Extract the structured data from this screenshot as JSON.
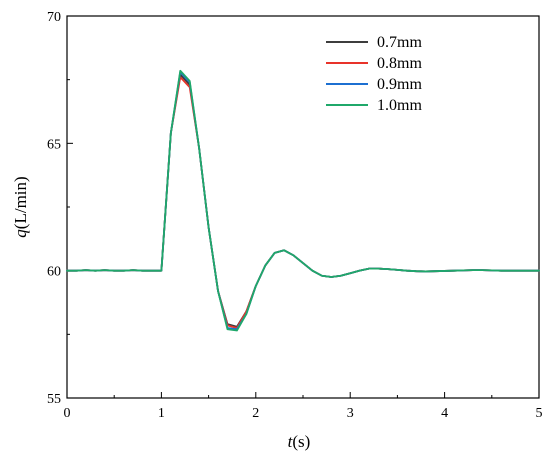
{
  "chart_data": {
    "type": "line",
    "xlabel_var": "t",
    "xlabel_unit": "(s)",
    "ylabel_var": "q",
    "ylabel_unit": "(L/min)",
    "xlim": [
      0,
      5
    ],
    "ylim": [
      55,
      70
    ],
    "xticks": [
      0,
      1,
      2,
      3,
      4,
      5
    ],
    "yticks": [
      55,
      60,
      65,
      70
    ],
    "grid": false,
    "legend_position": "top-right",
    "x": [
      0,
      0.1,
      0.2,
      0.3,
      0.4,
      0.5,
      0.6,
      0.7,
      0.8,
      0.9,
      1.0,
      1.1,
      1.2,
      1.3,
      1.4,
      1.5,
      1.6,
      1.7,
      1.8,
      1.9,
      2.0,
      2.1,
      2.2,
      2.3,
      2.4,
      2.5,
      2.6,
      2.7,
      2.8,
      2.9,
      3.0,
      3.1,
      3.2,
      3.3,
      3.4,
      3.5,
      3.6,
      3.7,
      3.8,
      3.9,
      4.0,
      4.1,
      4.2,
      4.3,
      4.4,
      4.5,
      4.6,
      4.7,
      4.8,
      4.9,
      5.0
    ],
    "series": [
      {
        "name": "0.7mm",
        "color": "#3d3d3d",
        "values": [
          60.0,
          60.0,
          60.02,
          60.0,
          60.02,
          60.0,
          60.0,
          60.02,
          60.0,
          60.0,
          60.0,
          65.4,
          67.7,
          67.3,
          64.8,
          61.7,
          59.2,
          57.9,
          57.8,
          58.4,
          59.4,
          60.2,
          60.7,
          60.8,
          60.6,
          60.3,
          60.0,
          59.8,
          59.75,
          59.8,
          59.9,
          60.0,
          60.08,
          60.08,
          60.06,
          60.03,
          60.0,
          59.98,
          59.97,
          59.98,
          59.99,
          60.0,
          60.01,
          60.02,
          60.02,
          60.01,
          60.0,
          60.0,
          60.0,
          60.0,
          60.0
        ]
      },
      {
        "name": "0.8mm",
        "color": "#e8332a",
        "values": [
          60.0,
          60.0,
          60.02,
          60.0,
          60.02,
          60.0,
          60.0,
          60.02,
          60.0,
          60.0,
          60.0,
          65.4,
          67.6,
          67.2,
          64.8,
          61.7,
          59.2,
          57.85,
          57.75,
          58.4,
          59.4,
          60.2,
          60.7,
          60.8,
          60.6,
          60.3,
          60.0,
          59.8,
          59.75,
          59.8,
          59.9,
          60.0,
          60.08,
          60.08,
          60.06,
          60.03,
          60.0,
          59.98,
          59.97,
          59.98,
          59.99,
          60.0,
          60.01,
          60.02,
          60.02,
          60.01,
          60.0,
          60.0,
          60.0,
          60.0,
          60.0
        ]
      },
      {
        "name": "0.9mm",
        "color": "#1c6fd1",
        "values": [
          60.0,
          60.0,
          60.02,
          60.0,
          60.02,
          60.0,
          60.0,
          60.02,
          60.0,
          60.0,
          60.0,
          65.4,
          67.8,
          67.4,
          64.8,
          61.7,
          59.2,
          57.75,
          57.7,
          58.3,
          59.4,
          60.2,
          60.7,
          60.8,
          60.6,
          60.3,
          60.0,
          59.8,
          59.75,
          59.8,
          59.9,
          60.0,
          60.08,
          60.08,
          60.06,
          60.03,
          60.0,
          59.98,
          59.97,
          59.98,
          59.99,
          60.0,
          60.01,
          60.02,
          60.02,
          60.01,
          60.0,
          60.0,
          60.0,
          60.0,
          60.0
        ]
      },
      {
        "name": "1.0mm",
        "color": "#1fa86a",
        "values": [
          60.0,
          60.0,
          60.02,
          60.0,
          60.02,
          60.0,
          60.0,
          60.02,
          60.0,
          60.0,
          60.0,
          65.4,
          67.85,
          67.45,
          64.8,
          61.7,
          59.2,
          57.7,
          57.65,
          58.3,
          59.4,
          60.2,
          60.7,
          60.8,
          60.6,
          60.3,
          60.0,
          59.8,
          59.75,
          59.8,
          59.9,
          60.0,
          60.08,
          60.08,
          60.06,
          60.03,
          60.0,
          59.98,
          59.97,
          59.98,
          59.99,
          60.0,
          60.01,
          60.02,
          60.02,
          60.01,
          60.0,
          60.0,
          60.0,
          60.0,
          60.0
        ]
      }
    ]
  }
}
